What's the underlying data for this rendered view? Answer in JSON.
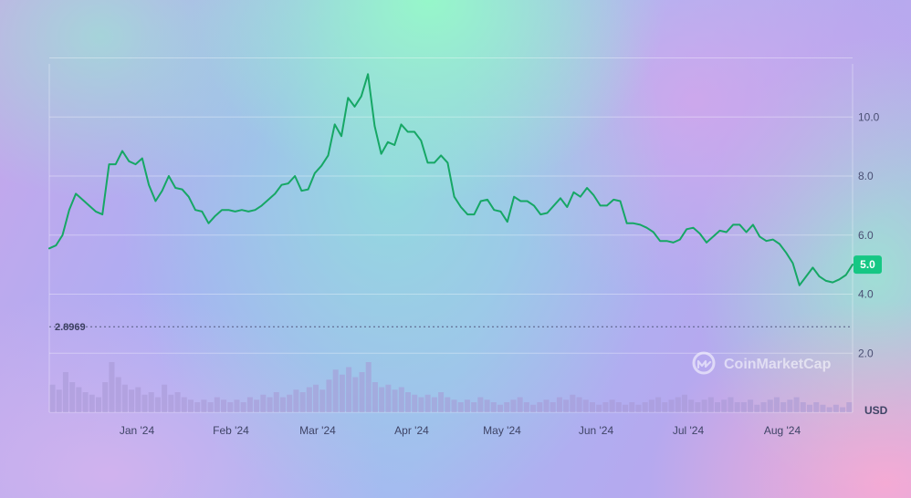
{
  "chart_data": {
    "type": "line",
    "title": "",
    "xlabel": "",
    "ylabel": "",
    "unit": "USD",
    "ylim": [
      0,
      11.8
    ],
    "y_ticks": [
      "2.0",
      "4.0",
      "6.0",
      "8.0",
      "10.0"
    ],
    "x_tick_labels": [
      "Jan '24",
      "Feb '24",
      "Mar '24",
      "Apr '24",
      "May '24",
      "Jun '24",
      "Jul '24",
      "Aug '24"
    ],
    "grid": true,
    "reference_line": {
      "value": 2.8969,
      "label": "2.8969"
    },
    "current_value_label": "5.0",
    "line_color": "#16a765",
    "badge_color": "#16c784",
    "volume_color": "#a698d4",
    "watermark": "CoinMarketCap",
    "series": [
      {
        "values": [
          5.55,
          5.65,
          6.0,
          6.85,
          7.4,
          7.2,
          7.0,
          6.8,
          6.7,
          8.4,
          8.4,
          8.85,
          8.5,
          8.4,
          8.6,
          7.7,
          7.15,
          7.5,
          8.0,
          7.6,
          7.55,
          7.3,
          6.85,
          6.8,
          6.4,
          6.65,
          6.85,
          6.85,
          6.8,
          6.85,
          6.8,
          6.85,
          7.0,
          7.2,
          7.4,
          7.7,
          7.75,
          8.0,
          7.5,
          7.55,
          8.1,
          8.35,
          8.7,
          9.75,
          9.35,
          10.65,
          10.35,
          10.7,
          11.45,
          9.7,
          8.75,
          9.15,
          9.05,
          9.75,
          9.5,
          9.5,
          9.2,
          8.45,
          8.45,
          8.7,
          8.45,
          7.3,
          6.95,
          6.7,
          6.7,
          7.15,
          7.2,
          6.85,
          6.8,
          6.45,
          7.3,
          7.15,
          7.15,
          7.0,
          6.7,
          6.75,
          7.0,
          7.25,
          6.95,
          7.45,
          7.3,
          7.6,
          7.35,
          7.0,
          7.0,
          7.2,
          7.15,
          6.4,
          6.4,
          6.35,
          6.25,
          6.1,
          5.8,
          5.8,
          5.75,
          5.85,
          6.2,
          6.25,
          6.05,
          5.75,
          5.95,
          6.15,
          6.1,
          6.35,
          6.35,
          6.1,
          6.35,
          5.95,
          5.8,
          5.85,
          5.7,
          5.4,
          5.05,
          4.3,
          4.6,
          4.9,
          4.6,
          4.45,
          4.4,
          4.5,
          4.65,
          5.0
        ]
      }
    ],
    "volume": [
      0.55,
      0.45,
      0.8,
      0.6,
      0.5,
      0.4,
      0.35,
      0.3,
      0.6,
      1.0,
      0.7,
      0.55,
      0.45,
      0.5,
      0.35,
      0.4,
      0.3,
      0.55,
      0.35,
      0.4,
      0.3,
      0.25,
      0.2,
      0.25,
      0.2,
      0.3,
      0.25,
      0.2,
      0.25,
      0.2,
      0.3,
      0.25,
      0.35,
      0.3,
      0.4,
      0.3,
      0.35,
      0.45,
      0.4,
      0.5,
      0.55,
      0.45,
      0.65,
      0.85,
      0.75,
      0.9,
      0.7,
      0.8,
      1.0,
      0.6,
      0.5,
      0.55,
      0.45,
      0.5,
      0.4,
      0.35,
      0.3,
      0.35,
      0.3,
      0.4,
      0.3,
      0.25,
      0.2,
      0.25,
      0.2,
      0.3,
      0.25,
      0.2,
      0.15,
      0.2,
      0.25,
      0.3,
      0.2,
      0.15,
      0.2,
      0.25,
      0.2,
      0.3,
      0.25,
      0.35,
      0.3,
      0.25,
      0.2,
      0.15,
      0.2,
      0.25,
      0.2,
      0.15,
      0.2,
      0.15,
      0.2,
      0.25,
      0.3,
      0.2,
      0.25,
      0.3,
      0.35,
      0.25,
      0.2,
      0.25,
      0.3,
      0.2,
      0.25,
      0.3,
      0.2,
      0.2,
      0.25,
      0.15,
      0.2,
      0.25,
      0.3,
      0.2,
      0.25,
      0.3,
      0.2,
      0.15,
      0.2,
      0.15,
      0.1,
      0.15,
      0.1,
      0.2
    ]
  }
}
